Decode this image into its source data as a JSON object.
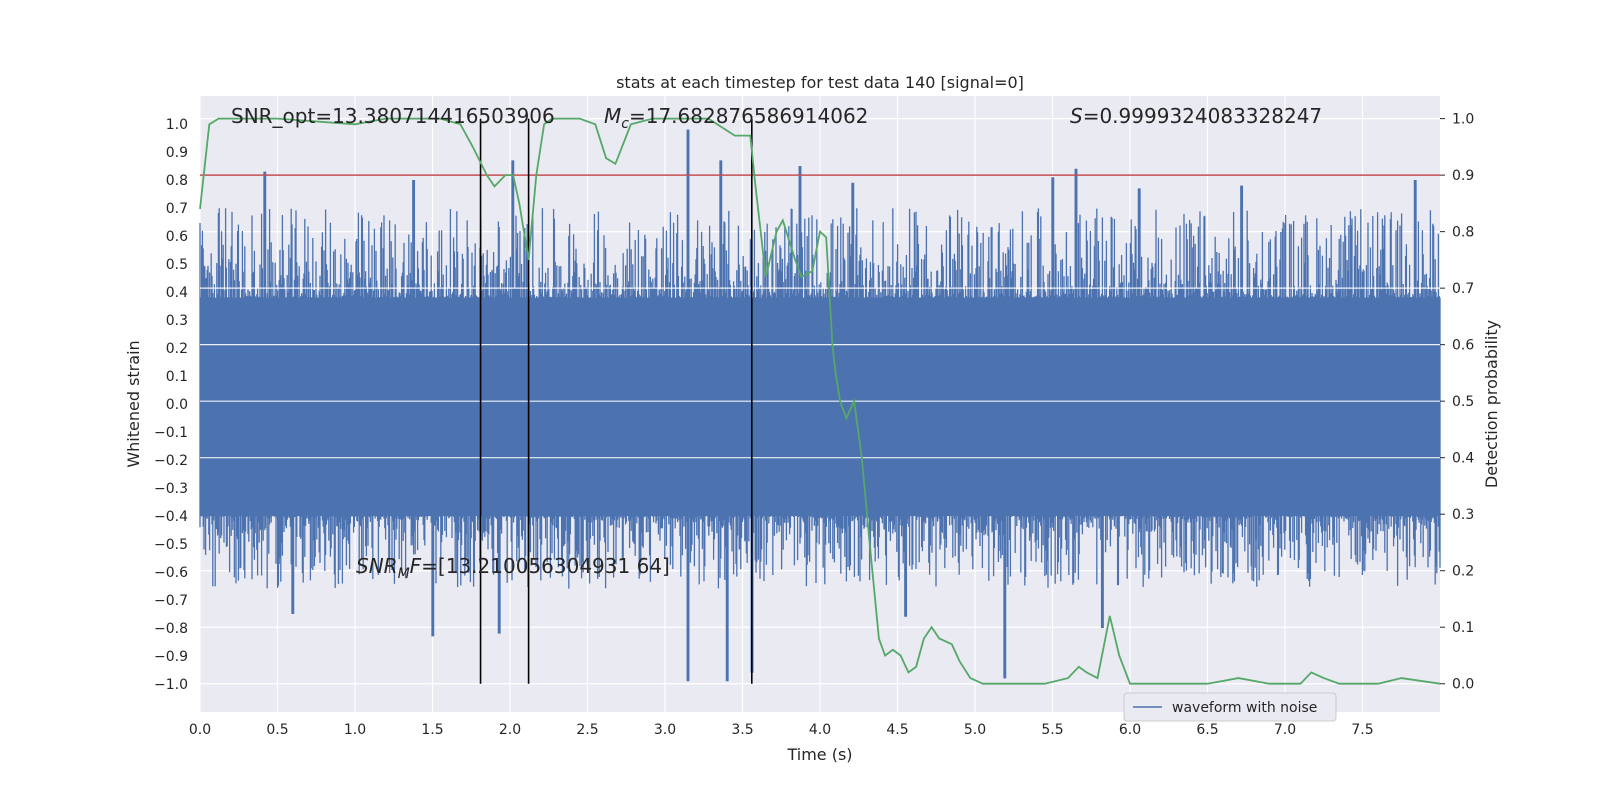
{
  "chart_data": {
    "type": "line",
    "title": "stats at each timestep for test data 140 [signal=0]",
    "xlabel": "Time (s)",
    "ylabel": "Whitened strain",
    "ylabel_right": "Detection probability",
    "xlim": [
      0,
      8.0
    ],
    "ylim": [
      -1.1,
      1.1
    ],
    "ylim_right": [
      -0.05,
      1.04
    ],
    "grid": true,
    "legend_position": "lower-right",
    "x_ticks": [
      "0.0",
      "0.5",
      "1.0",
      "1.5",
      "2.0",
      "2.5",
      "3.0",
      "3.5",
      "4.0",
      "4.5",
      "5.0",
      "5.5",
      "6.0",
      "6.5",
      "7.0",
      "7.5"
    ],
    "y_ticks": [
      "1.0",
      "0.9",
      "0.8",
      "0.7",
      "0.6",
      "0.5",
      "0.4",
      "0.3",
      "0.2",
      "0.1",
      "0.0",
      "−0.1",
      "−0.2",
      "−0.3",
      "−0.4",
      "−0.5",
      "−0.6",
      "−0.7",
      "−0.8",
      "−0.9",
      "−1.0"
    ],
    "y_right_ticks": [
      "1.0",
      "0.9",
      "0.8",
      "0.7",
      "0.6",
      "0.5",
      "0.4",
      "0.3",
      "0.2",
      "0.1",
      "0.0"
    ],
    "annotations": {
      "snr_opt": "SNR_opt=13.380714416503906",
      "mc_symbol": "M",
      "mc_sub": "c",
      "mc_value": "=17.682876586914062",
      "s_symbol": "S",
      "s_value": "=0.9999324083328247",
      "snr_mf_symbol": "SNR",
      "snr_mf_sub": "M",
      "snr_mf_suffix": "F",
      "snr_mf_value": "=[13.210056304931 64]"
    },
    "threshold_line": {
      "y_right": 0.9,
      "color": "#c44e52"
    },
    "vertical_lines_x": [
      1.81,
      2.12,
      3.56
    ],
    "series": [
      {
        "name": "waveform with noise",
        "color": "#4c72b0",
        "band_low": -0.4,
        "band_high": 0.38,
        "peaks_positive": [
          [
            0.42,
            0.83
          ],
          [
            1.38,
            0.8
          ],
          [
            2.02,
            0.87
          ],
          [
            3.15,
            0.98
          ],
          [
            3.36,
            0.87
          ],
          [
            3.87,
            0.85
          ],
          [
            4.21,
            0.79
          ],
          [
            5.5,
            0.81
          ],
          [
            5.65,
            0.84
          ],
          [
            6.06,
            0.77
          ],
          [
            6.72,
            0.78
          ],
          [
            7.84,
            0.8
          ]
        ],
        "peaks_negative": [
          [
            0.6,
            -0.75
          ],
          [
            1.5,
            -0.83
          ],
          [
            1.93,
            -0.82
          ],
          [
            3.15,
            -0.99
          ],
          [
            3.4,
            -0.99
          ],
          [
            3.56,
            -0.96
          ],
          [
            4.55,
            -0.76
          ],
          [
            5.19,
            -0.98
          ],
          [
            5.82,
            -0.8
          ]
        ]
      },
      {
        "name": "",
        "axis": "right",
        "color": "#55a868",
        "x": [
          0.0,
          0.06,
          0.12,
          0.5,
          1.0,
          1.2,
          1.55,
          1.68,
          1.76,
          1.85,
          1.9,
          1.97,
          2.02,
          2.06,
          2.12,
          2.17,
          2.22,
          2.27,
          2.33,
          2.45,
          2.55,
          2.62,
          2.68,
          2.78,
          2.92,
          3.05,
          3.28,
          3.45,
          3.55,
          3.58,
          3.65,
          3.72,
          3.76,
          3.84,
          3.88,
          3.95,
          4.0,
          4.04,
          4.08,
          4.1,
          4.13,
          4.17,
          4.22,
          4.27,
          4.32,
          4.38,
          4.42,
          4.47,
          4.52,
          4.57,
          4.62,
          4.67,
          4.72,
          4.77,
          4.85,
          4.9,
          4.97,
          5.05,
          5.15,
          5.25,
          5.45,
          5.6,
          5.67,
          5.72,
          5.79,
          5.87,
          5.93,
          6.0,
          6.05,
          6.2,
          6.5,
          6.7,
          6.9,
          7.1,
          7.17,
          7.25,
          7.35,
          7.6,
          7.75,
          8.0
        ],
        "values": [
          0.84,
          0.99,
          1.0,
          1.0,
          0.99,
          1.0,
          1.0,
          0.99,
          0.95,
          0.9,
          0.88,
          0.9,
          0.9,
          0.85,
          0.75,
          0.9,
          0.99,
          1.0,
          1.0,
          1.0,
          0.99,
          0.93,
          0.92,
          0.99,
          1.0,
          1.0,
          1.0,
          0.97,
          0.97,
          0.89,
          0.72,
          0.8,
          0.82,
          0.75,
          0.72,
          0.73,
          0.8,
          0.79,
          0.6,
          0.55,
          0.5,
          0.47,
          0.5,
          0.4,
          0.25,
          0.08,
          0.05,
          0.06,
          0.05,
          0.02,
          0.03,
          0.08,
          0.1,
          0.08,
          0.07,
          0.04,
          0.01,
          0.0,
          0.0,
          0.0,
          0.0,
          0.01,
          0.03,
          0.02,
          0.01,
          0.12,
          0.05,
          0.0,
          0.0,
          0.0,
          0.0,
          0.01,
          0.0,
          0.0,
          0.02,
          0.01,
          0.0,
          0.0,
          0.01,
          0.0
        ]
      }
    ]
  }
}
